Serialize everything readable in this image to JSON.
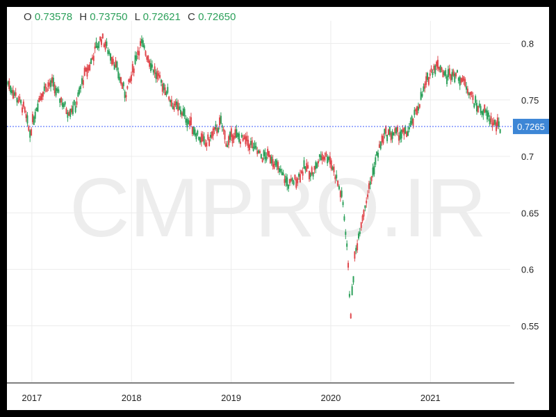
{
  "header": {
    "o_label": "O",
    "o_value": "0.73578",
    "h_label": "H",
    "h_value": "0.73750",
    "l_label": "L",
    "l_value": "0.72621",
    "c_label": "C",
    "c_value": "0.72650"
  },
  "watermark": "CMPRO.IR",
  "current_price_label": "0.7265",
  "colors": {
    "up": "#2ca05a",
    "down": "#e0474c",
    "price_line": "#3b5bff",
    "price_box": "#3d86d6"
  },
  "chart_data": {
    "type": "line",
    "title": "",
    "xlabel": "",
    "ylabel": "",
    "ylim": [
      0.5,
      0.82
    ],
    "yticks": [
      0.55,
      0.6,
      0.65,
      0.7,
      0.75,
      0.8
    ],
    "ytick_labels": [
      "0.55",
      "0.6",
      "0.65",
      "0.7",
      "0.75",
      "0.8"
    ],
    "xticks": [
      2017,
      2018,
      2019,
      2020,
      2021
    ],
    "xtick_labels": [
      "2017",
      "2018",
      "2019",
      "2020",
      "2021"
    ],
    "xlim": [
      2016.75,
      2021.8
    ],
    "current_price": 0.7265,
    "series": [
      {
        "x": [
          2016.76,
          2016.83,
          2016.92,
          2016.98,
          2017.05,
          2017.12,
          2017.2,
          2017.28,
          2017.36,
          2017.44,
          2017.52,
          2017.58,
          2017.64,
          2017.7,
          2017.76,
          2017.82,
          2017.88,
          2017.94,
          2018.0,
          2018.05,
          2018.1,
          2018.18,
          2018.26,
          2018.34,
          2018.42,
          2018.5,
          2018.58,
          2018.66,
          2018.74,
          2018.82,
          2018.9,
          2018.96,
          2019.02,
          2019.1,
          2019.2,
          2019.3,
          2019.4,
          2019.5,
          2019.58,
          2019.66,
          2019.74,
          2019.82,
          2019.9,
          2019.98,
          2020.06,
          2020.12,
          2020.16,
          2020.2,
          2020.24,
          2020.3,
          2020.38,
          2020.46,
          2020.54,
          2020.62,
          2020.7,
          2020.76,
          2020.82,
          2020.9,
          2020.98,
          2021.04,
          2021.1,
          2021.16,
          2021.22,
          2021.3,
          2021.38,
          2021.46,
          2021.54,
          2021.62,
          2021.7
        ],
        "y": [
          0.765,
          0.755,
          0.742,
          0.72,
          0.745,
          0.76,
          0.765,
          0.752,
          0.74,
          0.745,
          0.77,
          0.78,
          0.795,
          0.805,
          0.795,
          0.785,
          0.77,
          0.755,
          0.77,
          0.79,
          0.8,
          0.785,
          0.77,
          0.76,
          0.745,
          0.74,
          0.73,
          0.72,
          0.71,
          0.72,
          0.73,
          0.71,
          0.72,
          0.715,
          0.71,
          0.7,
          0.7,
          0.685,
          0.675,
          0.68,
          0.69,
          0.685,
          0.7,
          0.7,
          0.68,
          0.66,
          0.625,
          0.56,
          0.61,
          0.64,
          0.67,
          0.7,
          0.72,
          0.72,
          0.72,
          0.72,
          0.73,
          0.75,
          0.77,
          0.78,
          0.78,
          0.77,
          0.775,
          0.77,
          0.76,
          0.745,
          0.74,
          0.73,
          0.725
        ]
      }
    ]
  }
}
